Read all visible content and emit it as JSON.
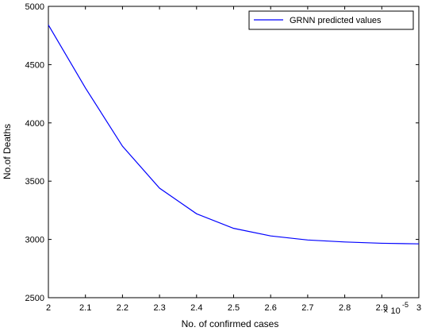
{
  "chart_data": {
    "type": "line",
    "title": "",
    "xlabel": "No. of  confirmed cases",
    "ylabel": "No.of  Deaths",
    "x_multiplier_label": "× 10",
    "x_multiplier_exponent": "-5",
    "xlim": [
      2,
      3
    ],
    "ylim": [
      2500,
      5000
    ],
    "xticks": [
      2,
      2.1,
      2.2,
      2.3,
      2.4,
      2.5,
      2.6,
      2.7,
      2.8,
      2.9,
      3
    ],
    "xtick_labels": [
      "2",
      "2.1",
      "2.2",
      "2.3",
      "2.4",
      "2.5",
      "2.6",
      "2.7",
      "2.8",
      "2.9",
      "3"
    ],
    "yticks": [
      2500,
      3000,
      3500,
      4000,
      4500,
      5000
    ],
    "ytick_labels": [
      "2500",
      "3000",
      "3500",
      "4000",
      "4500",
      "5000"
    ],
    "grid": false,
    "legend_position": "top-right",
    "series": [
      {
        "name": "GRNN predicted values",
        "color": "#0000ff",
        "x": [
          2,
          2.1,
          2.2,
          2.3,
          2.4,
          2.5,
          2.6,
          2.7,
          2.8,
          2.9,
          3
        ],
        "y": [
          4840,
          4300,
          3800,
          3440,
          3220,
          3095,
          3030,
          2995,
          2978,
          2967,
          2962
        ]
      }
    ]
  }
}
